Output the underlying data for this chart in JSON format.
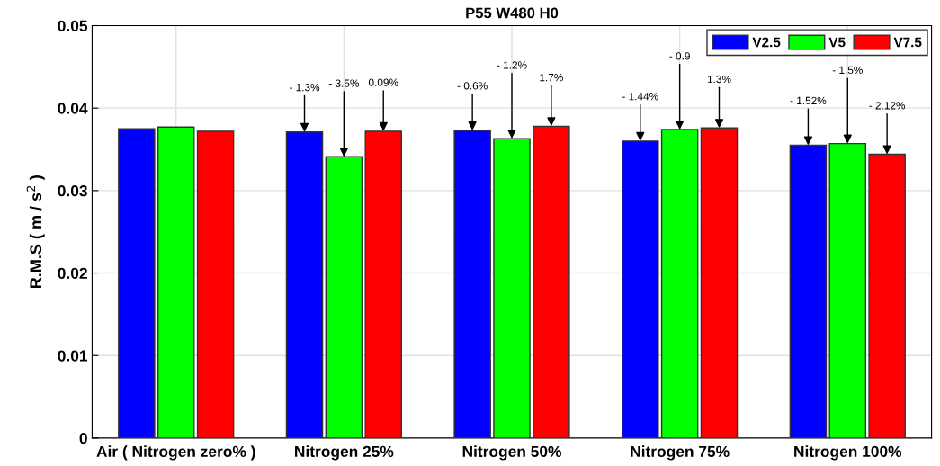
{
  "chart_data": {
    "type": "bar",
    "title": "P55 W480 H0",
    "ylabel": "R.M.S ( m / s$^{2}$ )",
    "categories": [
      "Air ( Nitrogen zero% )",
      "Nitrogen 25%",
      "Nitrogen 50%",
      "Nitrogen 75%",
      "Nitrogen 100%"
    ],
    "series": [
      {
        "name": "V2.5",
        "color": "#0000ff",
        "values": [
          0.0375,
          0.0371,
          0.0373,
          0.036,
          0.0355
        ]
      },
      {
        "name": "V5",
        "color": "#00ff00",
        "values": [
          0.0377,
          0.0341,
          0.0363,
          0.0374,
          0.0357
        ]
      },
      {
        "name": "V7.5",
        "color": "#ff0000",
        "values": [
          0.0372,
          0.0372,
          0.0378,
          0.0376,
          0.0344
        ]
      }
    ],
    "ylim": [
      0,
      0.05
    ],
    "yticks": [
      0,
      0.01,
      0.02,
      0.03,
      0.04,
      0.05
    ],
    "grid": true,
    "legend": "top right",
    "annotations": [
      {
        "text": "- 1.3%",
        "y": 0.0371
      },
      {
        "text": "- 3.5%",
        "y": 0.0341
      },
      {
        "text": "0.09%",
        "y": 0.0372
      },
      {
        "text": "- 0.6%",
        "y": 0.0373
      },
      {
        "text": "- 1.2%",
        "y": 0.0363
      },
      {
        "text": "1.7%",
        "y": 0.0378
      },
      {
        "text": "- 1.44%",
        "y": 0.036
      },
      {
        "text": "- 0.9",
        "y": 0.0374
      },
      {
        "text": "1.3%",
        "y": 0.0376
      },
      {
        "text": "- 1.52%",
        "y": 0.0355
      },
      {
        "text": "- 1.5%",
        "y": 0.0357
      },
      {
        "text": "- 2.12%",
        "y": 0.0344
      }
    ]
  }
}
